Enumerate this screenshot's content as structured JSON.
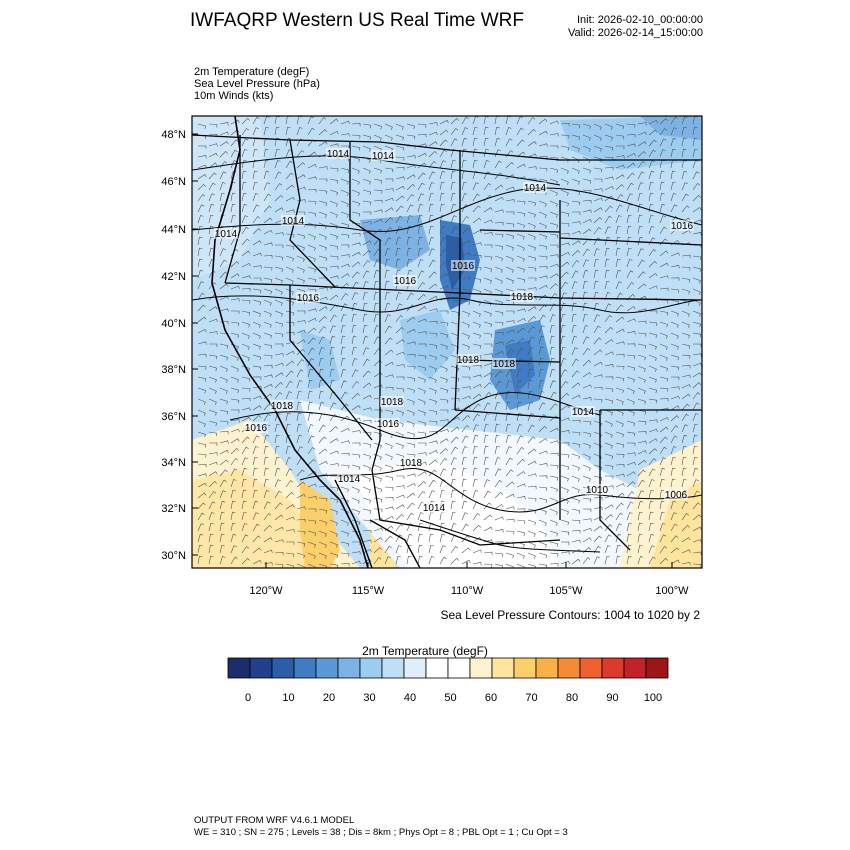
{
  "header": {
    "title": "IWFAQRP Western US Real Time WRF",
    "init": "Init: 2026-02-10_00:00:00",
    "valid": "Valid: 2026-02-14_15:00:00"
  },
  "fields": [
    "2m Temperature   (degF)",
    "Sea Level Pressure   (hPa)",
    "10m Winds   (kts)"
  ],
  "map": {
    "lat_ticks": [
      "48°N",
      "46°N",
      "44°N",
      "42°N",
      "40°N",
      "38°N",
      "36°N",
      "34°N",
      "32°N",
      "30°N"
    ],
    "lon_ticks": [
      "120°W",
      "115°W",
      "110°W",
      "105°W",
      "100°W"
    ],
    "isobar_labels": [
      "1014",
      "1014",
      "1014",
      "1014",
      "1014",
      "1016",
      "1016",
      "1016",
      "1016",
      "1018",
      "1018",
      "1018",
      "1018",
      "1018",
      "1016",
      "1016",
      "1014",
      "1010",
      "1006",
      "1018",
      "1014",
      "1014"
    ]
  },
  "contour_note": "Sea Level Pressure Contours: 1004 to 1020 by 2",
  "colorbar": {
    "title": "2m Temperature  (degF)",
    "colors": [
      "#1b2e6b",
      "#213f8a",
      "#2c5ea8",
      "#3f7cc4",
      "#5b99d6",
      "#7cb3e4",
      "#9cccef",
      "#bedff6",
      "#e0effa",
      "#ffffff",
      "#ffffff",
      "#fff3cf",
      "#ffe49e",
      "#fccf6b",
      "#f9b145",
      "#f58c33",
      "#ee6030",
      "#dc3a2c",
      "#c2222a",
      "#9b1519"
    ],
    "labels": [
      "0",
      "10",
      "20",
      "30",
      "40",
      "50",
      "60",
      "70",
      "80",
      "90",
      "100"
    ]
  },
  "footer": {
    "line1": "OUTPUT FROM WRF V4.6.1 MODEL",
    "line2": "WE = 310 ; SN = 275 ; Levels = 38 ; Dis = 8km ; Phys Opt = 8 ; PBL Opt = 1 ; Cu Opt = 3"
  }
}
